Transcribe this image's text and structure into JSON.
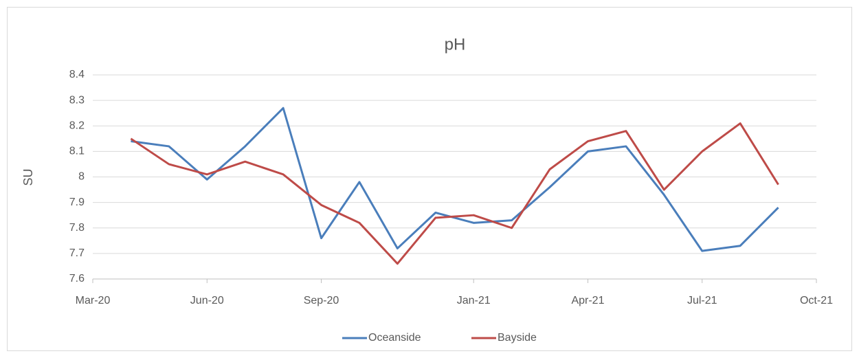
{
  "chart_data": {
    "type": "line",
    "title": "pH",
    "y_label": "SU",
    "x": [
      "2020-04",
      "2020-05",
      "2020-06",
      "2020-07",
      "2020-08",
      "2020-09",
      "2020-10",
      "2020-11",
      "2020-12",
      "2021-01",
      "2021-02",
      "2021-03",
      "2021-04",
      "2021-05",
      "2021-06",
      "2021-07",
      "2021-08",
      "2021-09"
    ],
    "series": [
      {
        "name": "Oceanside",
        "color": "#4a7ebb",
        "values": [
          8.14,
          8.12,
          7.99,
          8.12,
          8.27,
          7.76,
          7.98,
          7.72,
          7.86,
          7.82,
          7.83,
          7.96,
          8.1,
          8.12,
          7.93,
          7.71,
          7.73,
          7.88
        ]
      },
      {
        "name": "Bayside",
        "color": "#be4b48",
        "values": [
          8.15,
          8.05,
          8.01,
          8.06,
          8.01,
          7.89,
          7.82,
          7.66,
          7.84,
          7.85,
          7.8,
          8.03,
          8.14,
          8.18,
          7.95,
          8.1,
          8.21,
          7.97
        ]
      }
    ],
    "xlim": [
      "2020-03",
      "2021-10"
    ],
    "xticks": [
      {
        "value": "2020-03",
        "label": "Mar-20"
      },
      {
        "value": "2020-06",
        "label": "Jun-20"
      },
      {
        "value": "2020-09",
        "label": "Sep-20"
      },
      {
        "value": "2021-01",
        "label": "Jan-21"
      },
      {
        "value": "2021-04",
        "label": "Apr-21"
      },
      {
        "value": "2021-07",
        "label": "Jul-21"
      },
      {
        "value": "2021-10",
        "label": "Oct-21"
      }
    ],
    "ylim": [
      7.6,
      8.4
    ],
    "yticks": [
      7.6,
      7.7,
      7.8,
      7.9,
      8,
      8.1,
      8.2,
      8.3,
      8.4
    ],
    "grid": true,
    "legend": "bottom"
  }
}
